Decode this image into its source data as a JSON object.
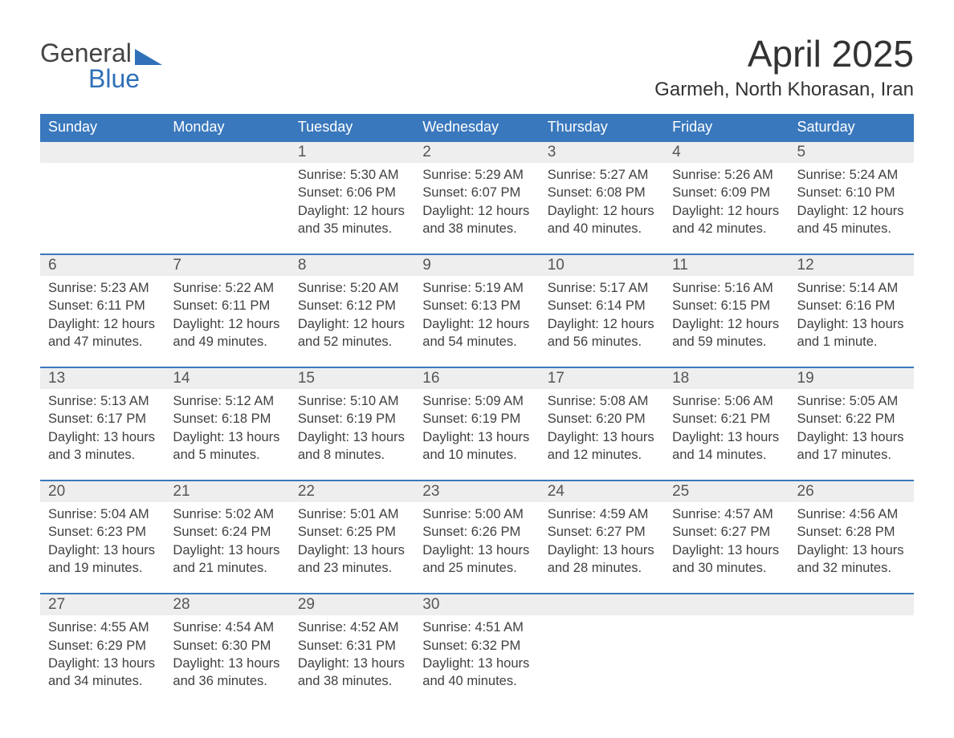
{
  "logo": {
    "general": "General",
    "blue": "Blue"
  },
  "brand_color": "#2f70b8",
  "header_bg": "#3a78bd",
  "title": "April 2025",
  "location": "Garmeh, North Khorasan, Iran",
  "weekdays": [
    "Sunday",
    "Monday",
    "Tuesday",
    "Wednesday",
    "Thursday",
    "Friday",
    "Saturday"
  ],
  "weeks": [
    {
      "days": [
        {
          "n": "",
          "sunrise": "",
          "sunset": "",
          "daylight": ""
        },
        {
          "n": "",
          "sunrise": "",
          "sunset": "",
          "daylight": ""
        },
        {
          "n": "1",
          "sunrise": "Sunrise: 5:30 AM",
          "sunset": "Sunset: 6:06 PM",
          "daylight": "Daylight: 12 hours and 35 minutes."
        },
        {
          "n": "2",
          "sunrise": "Sunrise: 5:29 AM",
          "sunset": "Sunset: 6:07 PM",
          "daylight": "Daylight: 12 hours and 38 minutes."
        },
        {
          "n": "3",
          "sunrise": "Sunrise: 5:27 AM",
          "sunset": "Sunset: 6:08 PM",
          "daylight": "Daylight: 12 hours and 40 minutes."
        },
        {
          "n": "4",
          "sunrise": "Sunrise: 5:26 AM",
          "sunset": "Sunset: 6:09 PM",
          "daylight": "Daylight: 12 hours and 42 minutes."
        },
        {
          "n": "5",
          "sunrise": "Sunrise: 5:24 AM",
          "sunset": "Sunset: 6:10 PM",
          "daylight": "Daylight: 12 hours and 45 minutes."
        }
      ]
    },
    {
      "days": [
        {
          "n": "6",
          "sunrise": "Sunrise: 5:23 AM",
          "sunset": "Sunset: 6:11 PM",
          "daylight": "Daylight: 12 hours and 47 minutes."
        },
        {
          "n": "7",
          "sunrise": "Sunrise: 5:22 AM",
          "sunset": "Sunset: 6:11 PM",
          "daylight": "Daylight: 12 hours and 49 minutes."
        },
        {
          "n": "8",
          "sunrise": "Sunrise: 5:20 AM",
          "sunset": "Sunset: 6:12 PM",
          "daylight": "Daylight: 12 hours and 52 minutes."
        },
        {
          "n": "9",
          "sunrise": "Sunrise: 5:19 AM",
          "sunset": "Sunset: 6:13 PM",
          "daylight": "Daylight: 12 hours and 54 minutes."
        },
        {
          "n": "10",
          "sunrise": "Sunrise: 5:17 AM",
          "sunset": "Sunset: 6:14 PM",
          "daylight": "Daylight: 12 hours and 56 minutes."
        },
        {
          "n": "11",
          "sunrise": "Sunrise: 5:16 AM",
          "sunset": "Sunset: 6:15 PM",
          "daylight": "Daylight: 12 hours and 59 minutes."
        },
        {
          "n": "12",
          "sunrise": "Sunrise: 5:14 AM",
          "sunset": "Sunset: 6:16 PM",
          "daylight": "Daylight: 13 hours and 1 minute."
        }
      ]
    },
    {
      "days": [
        {
          "n": "13",
          "sunrise": "Sunrise: 5:13 AM",
          "sunset": "Sunset: 6:17 PM",
          "daylight": "Daylight: 13 hours and 3 minutes."
        },
        {
          "n": "14",
          "sunrise": "Sunrise: 5:12 AM",
          "sunset": "Sunset: 6:18 PM",
          "daylight": "Daylight: 13 hours and 5 minutes."
        },
        {
          "n": "15",
          "sunrise": "Sunrise: 5:10 AM",
          "sunset": "Sunset: 6:19 PM",
          "daylight": "Daylight: 13 hours and 8 minutes."
        },
        {
          "n": "16",
          "sunrise": "Sunrise: 5:09 AM",
          "sunset": "Sunset: 6:19 PM",
          "daylight": "Daylight: 13 hours and 10 minutes."
        },
        {
          "n": "17",
          "sunrise": "Sunrise: 5:08 AM",
          "sunset": "Sunset: 6:20 PM",
          "daylight": "Daylight: 13 hours and 12 minutes."
        },
        {
          "n": "18",
          "sunrise": "Sunrise: 5:06 AM",
          "sunset": "Sunset: 6:21 PM",
          "daylight": "Daylight: 13 hours and 14 minutes."
        },
        {
          "n": "19",
          "sunrise": "Sunrise: 5:05 AM",
          "sunset": "Sunset: 6:22 PM",
          "daylight": "Daylight: 13 hours and 17 minutes."
        }
      ]
    },
    {
      "days": [
        {
          "n": "20",
          "sunrise": "Sunrise: 5:04 AM",
          "sunset": "Sunset: 6:23 PM",
          "daylight": "Daylight: 13 hours and 19 minutes."
        },
        {
          "n": "21",
          "sunrise": "Sunrise: 5:02 AM",
          "sunset": "Sunset: 6:24 PM",
          "daylight": "Daylight: 13 hours and 21 minutes."
        },
        {
          "n": "22",
          "sunrise": "Sunrise: 5:01 AM",
          "sunset": "Sunset: 6:25 PM",
          "daylight": "Daylight: 13 hours and 23 minutes."
        },
        {
          "n": "23",
          "sunrise": "Sunrise: 5:00 AM",
          "sunset": "Sunset: 6:26 PM",
          "daylight": "Daylight: 13 hours and 25 minutes."
        },
        {
          "n": "24",
          "sunrise": "Sunrise: 4:59 AM",
          "sunset": "Sunset: 6:27 PM",
          "daylight": "Daylight: 13 hours and 28 minutes."
        },
        {
          "n": "25",
          "sunrise": "Sunrise: 4:57 AM",
          "sunset": "Sunset: 6:27 PM",
          "daylight": "Daylight: 13 hours and 30 minutes."
        },
        {
          "n": "26",
          "sunrise": "Sunrise: 4:56 AM",
          "sunset": "Sunset: 6:28 PM",
          "daylight": "Daylight: 13 hours and 32 minutes."
        }
      ]
    },
    {
      "days": [
        {
          "n": "27",
          "sunrise": "Sunrise: 4:55 AM",
          "sunset": "Sunset: 6:29 PM",
          "daylight": "Daylight: 13 hours and 34 minutes."
        },
        {
          "n": "28",
          "sunrise": "Sunrise: 4:54 AM",
          "sunset": "Sunset: 6:30 PM",
          "daylight": "Daylight: 13 hours and 36 minutes."
        },
        {
          "n": "29",
          "sunrise": "Sunrise: 4:52 AM",
          "sunset": "Sunset: 6:31 PM",
          "daylight": "Daylight: 13 hours and 38 minutes."
        },
        {
          "n": "30",
          "sunrise": "Sunrise: 4:51 AM",
          "sunset": "Sunset: 6:32 PM",
          "daylight": "Daylight: 13 hours and 40 minutes."
        },
        {
          "n": "",
          "sunrise": "",
          "sunset": "",
          "daylight": ""
        },
        {
          "n": "",
          "sunrise": "",
          "sunset": "",
          "daylight": ""
        },
        {
          "n": "",
          "sunrise": "",
          "sunset": "",
          "daylight": ""
        }
      ]
    }
  ]
}
